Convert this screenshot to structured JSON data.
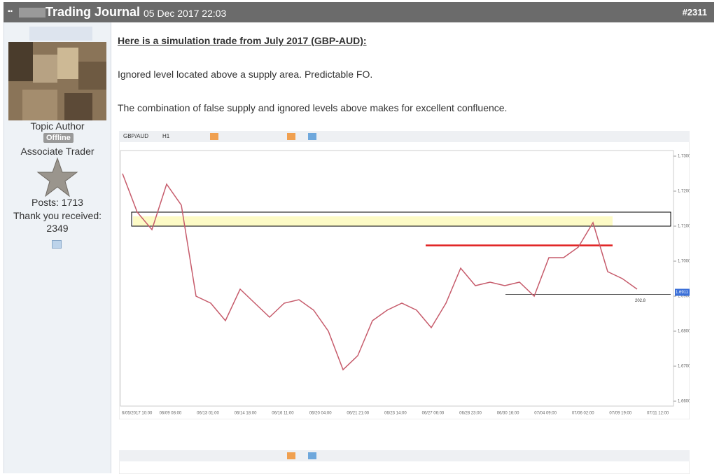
{
  "header": {
    "title": "Trading Journal",
    "date": "05 Dec 2017 22:03",
    "post_number": "#2311"
  },
  "user": {
    "role": "Topic Author",
    "status": "Offline",
    "rank": "Associate Trader",
    "posts": "Posts: 1713",
    "thanks_label": "Thank you received:",
    "thanks": "2349"
  },
  "post": {
    "heading": "Here is a simulation trade from July 2017 (GBP-AUD):",
    "paragraphs": [
      "Ignored level located above a supply area. Predictable FO.",
      "The combination of false supply and ignored levels above makes for excellent confluence."
    ]
  },
  "chart_data": {
    "type": "line",
    "symbol": "GBP/AUD",
    "timeframe": "H1",
    "color": "#c65b6b",
    "x_axis_labels": [
      "6/05/2017 10:00",
      "06/09 08:00",
      "06/13 01:00",
      "06/14 18:00",
      "06/16 11:00",
      "06/20 04:00",
      "06/21 21:00",
      "06/23 14:00",
      "06/27 06:00",
      "06/28 23:00",
      "06/30 16:00",
      "07/04 09:00",
      "07/06 02:00",
      "07/09 19:00",
      "07/11 12:00"
    ],
    "values": [
      1.725,
      1.714,
      1.709,
      1.722,
      1.716,
      1.69,
      1.688,
      1.683,
      1.692,
      1.688,
      1.684,
      1.688,
      1.689,
      1.686,
      1.68,
      1.669,
      1.673,
      1.683,
      1.686,
      1.688,
      1.686,
      1.681,
      1.688,
      1.698,
      1.693,
      1.694,
      1.693,
      1.694,
      1.69,
      1.701,
      1.701,
      1.704,
      1.711,
      1.697,
      1.695,
      1.692
    ],
    "ylim": [
      1.6586,
      1.7316
    ],
    "yticks": [
      {
        "value": 1.73,
        "label": "1.7300"
      },
      {
        "value": 1.72,
        "label": "1.7200"
      },
      {
        "value": 1.71,
        "label": "1.7100"
      },
      {
        "value": 1.7,
        "label": "1.7000"
      },
      {
        "value": 1.69,
        "label": "1.6900"
      },
      {
        "value": 1.68,
        "label": "1.6800"
      },
      {
        "value": 1.67,
        "label": "1.6700"
      },
      {
        "value": 1.66,
        "label": "1.6600"
      }
    ],
    "last_price": 1.6911,
    "supply_zone": [
      1.71,
      1.7128
    ],
    "ignored_level_box": [
      1.71,
      1.714
    ],
    "red_level": 1.7045,
    "target_level": 1.6905,
    "target_label": "202.8"
  }
}
